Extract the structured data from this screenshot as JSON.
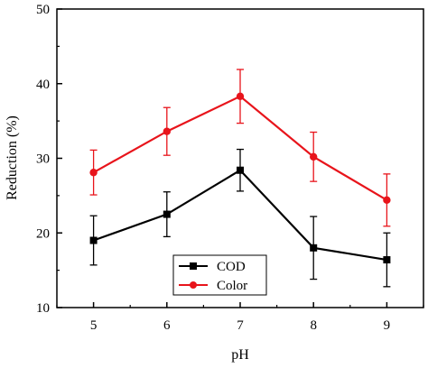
{
  "chart_data": {
    "type": "line",
    "xlabel": "pH",
    "ylabel": "Reduction (%)",
    "x": [
      5,
      6,
      7,
      8,
      9
    ],
    "xlim": [
      4.5,
      9.5
    ],
    "ylim": [
      10,
      50
    ],
    "xticks": [
      "5",
      "6",
      "7",
      "8",
      "9"
    ],
    "yticks": [
      "10",
      "20",
      "30",
      "40",
      "50"
    ],
    "grid": false,
    "legend_position": "bottom-left",
    "series": [
      {
        "name": "COD",
        "color": "#000000",
        "marker": "square",
        "values": [
          19.0,
          22.5,
          28.4,
          18.0,
          16.4
        ],
        "errors": [
          3.3,
          3.0,
          2.8,
          4.2,
          3.6
        ]
      },
      {
        "name": "Color",
        "color": "#e8141b",
        "marker": "circle",
        "values": [
          28.1,
          33.6,
          38.3,
          30.2,
          24.4
        ],
        "errors": [
          3.0,
          3.2,
          3.6,
          3.3,
          3.5
        ]
      }
    ]
  }
}
